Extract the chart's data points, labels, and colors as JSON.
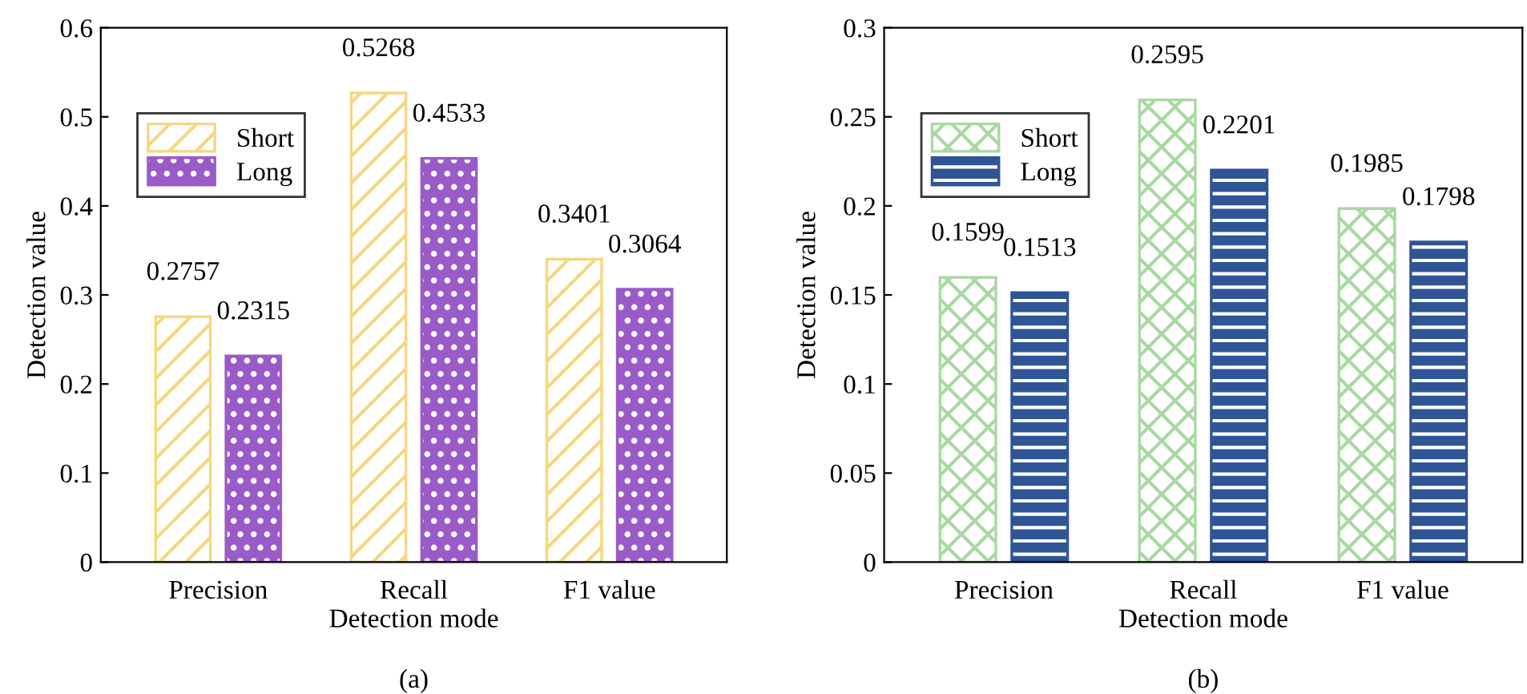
{
  "chart_data": [
    {
      "type": "bar",
      "xlabel": "Detection mode",
      "ylabel": "Detection value",
      "categories": [
        "Precision",
        "Recall",
        "F1 value"
      ],
      "series": [
        {
          "name": "Short",
          "color": "#f5d77e",
          "values": [
            0.2757,
            0.5268,
            0.3401
          ]
        },
        {
          "name": "Long",
          "color": "#9a5bc8",
          "values": [
            0.2315,
            0.4533,
            0.3064
          ]
        }
      ],
      "ylim": [
        0,
        0.6
      ],
      "yticks": [
        0,
        0.1,
        0.2,
        0.3,
        0.4,
        0.5,
        0.6
      ],
      "data_labels": true,
      "legend": "top left",
      "grid": false,
      "annotations": [
        "(a)"
      ]
    },
    {
      "type": "bar",
      "xlabel": "Detection mode",
      "ylabel": "Detection value",
      "categories": [
        "Precision",
        "Recall",
        "F1 value"
      ],
      "series": [
        {
          "name": "Short",
          "color": "#a9d8a2",
          "values": [
            0.1599,
            0.2595,
            0.1985
          ]
        },
        {
          "name": "Long",
          "color": "#2f5597",
          "values": [
            0.1513,
            0.2201,
            0.1798
          ]
        }
      ],
      "ylim": [
        0,
        0.3
      ],
      "yticks": [
        0,
        0.05,
        0.1,
        0.15,
        0.2,
        0.25,
        0.3
      ],
      "data_labels": true,
      "legend": "top left",
      "grid": false,
      "annotations": [
        "(b)"
      ]
    }
  ]
}
